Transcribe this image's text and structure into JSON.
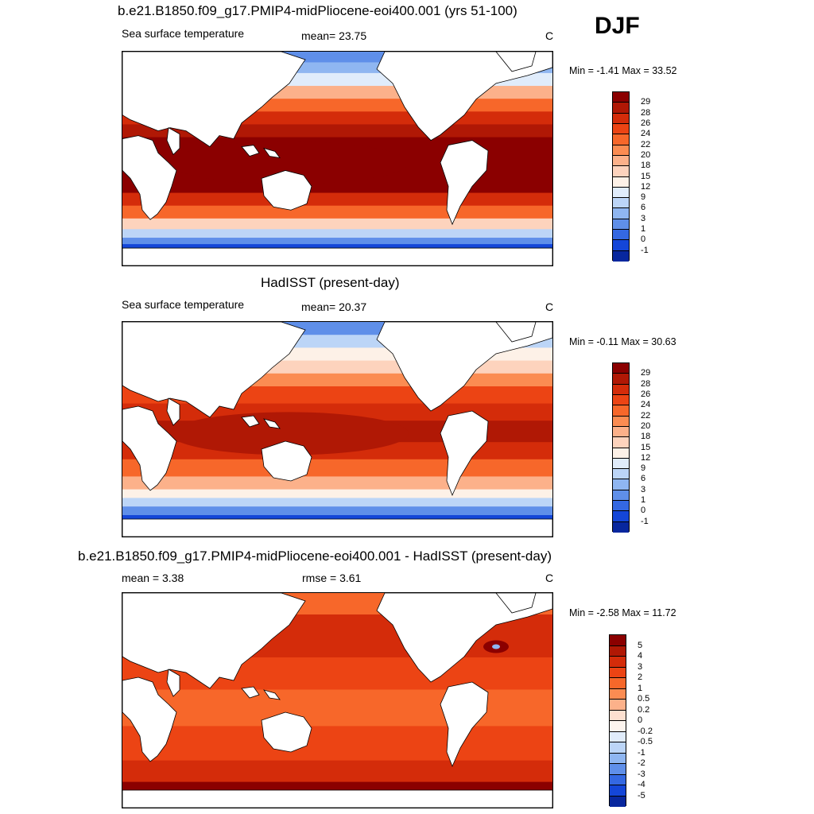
{
  "season": "DJF",
  "panels": [
    {
      "title": "b.e21.B1850.f09_g17.PMIP4-midPliocene-eoi400.001 (yrs 51-100)",
      "left_label": "Sea surface temperature",
      "center_label": "mean=  23.75",
      "units": "C",
      "minmax": "Min =  -1.41 Max =  33.52",
      "colorbar": {
        "labels": [
          "29",
          "28",
          "26",
          "24",
          "22",
          "20",
          "18",
          "15",
          "12",
          "9",
          "6",
          "3",
          "1",
          "0",
          "-1"
        ],
        "colors": [
          "#8b0000",
          "#b01805",
          "#d42c0a",
          "#ec4414",
          "#f7672a",
          "#fb8c52",
          "#fcb18a",
          "#fdd3bd",
          "#fdf1e7",
          "#e0ecfb",
          "#bcd5f7",
          "#8fb6f1",
          "#5f8fe9",
          "#3468e2",
          "#1446d8",
          "#08279e"
        ]
      },
      "map": {
        "scheme": "pliocene"
      }
    },
    {
      "title": "HadISST (present-day)",
      "left_label": "Sea surface temperature",
      "center_label": "mean=  20.37",
      "units": "C",
      "minmax": "Min =  -0.11 Max =  30.63",
      "colorbar": {
        "labels": [
          "29",
          "28",
          "26",
          "24",
          "22",
          "20",
          "18",
          "15",
          "12",
          "9",
          "6",
          "3",
          "1",
          "0",
          "-1"
        ],
        "colors": [
          "#8b0000",
          "#b01805",
          "#d42c0a",
          "#ec4414",
          "#f7672a",
          "#fb8c52",
          "#fcb18a",
          "#fdd3bd",
          "#fdf1e7",
          "#e0ecfb",
          "#bcd5f7",
          "#8fb6f1",
          "#5f8fe9",
          "#3468e2",
          "#1446d8",
          "#08279e"
        ]
      },
      "map": {
        "scheme": "present"
      }
    },
    {
      "title": "b.e21.B1850.f09_g17.PMIP4-midPliocene-eoi400.001 - HadISST (present-day)",
      "left_label": "mean =   3.38",
      "center_label": "rmse =   3.61",
      "units": "C",
      "minmax": "Min =  -2.58 Max =  11.72",
      "colorbar": {
        "labels": [
          "5",
          "4",
          "3",
          "2",
          "1",
          "0.5",
          "0.2",
          "0",
          "-0.2",
          "-0.5",
          "-1",
          "-2",
          "-3",
          "-4",
          "-5"
        ],
        "colors": [
          "#8b0000",
          "#b01805",
          "#d42c0a",
          "#ec4414",
          "#f7672a",
          "#fb8c52",
          "#fcb18a",
          "#fde0d0",
          "#fdf4ee",
          "#e0ecfb",
          "#bcd5f7",
          "#8fb6f1",
          "#5f8fe9",
          "#3468e2",
          "#1446d8",
          "#08279e"
        ]
      },
      "map": {
        "scheme": "difference"
      }
    }
  ]
}
